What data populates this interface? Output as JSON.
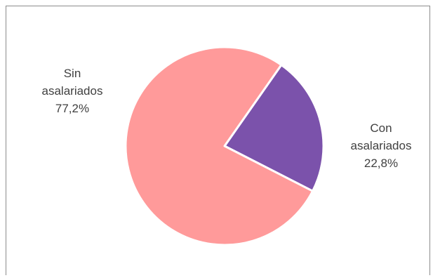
{
  "chart_data": {
    "type": "pie",
    "title": "",
    "categories": [
      "Sin asalariados",
      "Con asalariados"
    ],
    "values": [
      77.2,
      22.8
    ],
    "value_labels": [
      "77,2%",
      "22,8%"
    ],
    "label_lines": [
      [
        "Sin",
        "asalariados",
        "77,2%"
      ],
      [
        "Con",
        "asalariados",
        "22,8%"
      ]
    ],
    "colors": [
      "#ff9a9a",
      "#7b52ab"
    ],
    "slice_border_color": "#ffffff",
    "legend": "none"
  }
}
